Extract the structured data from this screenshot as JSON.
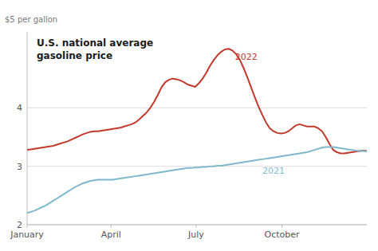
{
  "chart_data": {
    "type": "line",
    "title": "U.S. national average\ngasoline price",
    "y_label": "$5 per gallon",
    "x": [
      0,
      4,
      8,
      12,
      16,
      20,
      24,
      28,
      32,
      36,
      40,
      44,
      48,
      52,
      56,
      60,
      64,
      68,
      72,
      76,
      80,
      84,
      88,
      92,
      96,
      100,
      104,
      108,
      112,
      116,
      120,
      124,
      128,
      132,
      136,
      140,
      144,
      148,
      152,
      156,
      160,
      164,
      168,
      172,
      176,
      180,
      184,
      188,
      192,
      196,
      200,
      204,
      208,
      212,
      216,
      220,
      224,
      228,
      232,
      236,
      240,
      244,
      248,
      252,
      256,
      260,
      264,
      268,
      272,
      276,
      280,
      284,
      288,
      292,
      296,
      300,
      304,
      308,
      312,
      316,
      320,
      324,
      328,
      332,
      336,
      340,
      344,
      348,
      352,
      356,
      360,
      364
    ],
    "series": [
      {
        "name": "2022",
        "color": "#c0392b",
        "values": [
          3.28,
          3.29,
          3.3,
          3.31,
          3.32,
          3.33,
          3.34,
          3.35,
          3.37,
          3.39,
          3.41,
          3.43,
          3.46,
          3.49,
          3.52,
          3.55,
          3.57,
          3.59,
          3.6,
          3.6,
          3.61,
          3.62,
          3.63,
          3.64,
          3.65,
          3.66,
          3.68,
          3.7,
          3.72,
          3.75,
          3.8,
          3.86,
          3.92,
          4.0,
          4.1,
          4.22,
          4.35,
          4.44,
          4.48,
          4.5,
          4.49,
          4.47,
          4.44,
          4.4,
          4.38,
          4.36,
          4.42,
          4.5,
          4.6,
          4.72,
          4.82,
          4.9,
          4.96,
          5.0,
          5.01,
          4.98,
          4.92,
          4.82,
          4.68,
          4.52,
          4.35,
          4.18,
          4.02,
          3.88,
          3.75,
          3.65,
          3.6,
          3.57,
          3.56,
          3.57,
          3.6,
          3.65,
          3.7,
          3.72,
          3.7,
          3.68,
          3.68,
          3.68,
          3.65,
          3.6,
          3.5,
          3.38,
          3.28,
          3.24,
          3.22,
          3.22,
          3.23,
          3.24,
          3.25,
          3.26,
          3.27,
          3.26
        ]
      },
      {
        "name": "2021",
        "color": "#7eb8cc",
        "values": [
          2.2,
          2.22,
          2.24,
          2.27,
          2.3,
          2.33,
          2.37,
          2.41,
          2.45,
          2.49,
          2.53,
          2.57,
          2.61,
          2.65,
          2.68,
          2.71,
          2.73,
          2.75,
          2.76,
          2.77,
          2.77,
          2.77,
          2.77,
          2.77,
          2.78,
          2.79,
          2.8,
          2.81,
          2.82,
          2.83,
          2.84,
          2.85,
          2.86,
          2.87,
          2.88,
          2.89,
          2.9,
          2.91,
          2.92,
          2.93,
          2.94,
          2.95,
          2.96,
          2.97,
          2.97,
          2.98,
          2.98,
          2.99,
          2.99,
          3.0,
          3.0,
          3.01,
          3.01,
          3.02,
          3.03,
          3.04,
          3.05,
          3.06,
          3.07,
          3.08,
          3.09,
          3.1,
          3.11,
          3.12,
          3.13,
          3.14,
          3.15,
          3.16,
          3.17,
          3.18,
          3.19,
          3.2,
          3.21,
          3.22,
          3.23,
          3.24,
          3.26,
          3.28,
          3.3,
          3.32,
          3.33,
          3.33,
          3.33,
          3.32,
          3.31,
          3.3,
          3.29,
          3.28,
          3.27,
          3.26,
          3.26,
          3.25
        ]
      }
    ],
    "xlim": [
      0,
      364
    ],
    "xticks": [
      {
        "value": 0,
        "label": "January"
      },
      {
        "value": 90,
        "label": "April"
      },
      {
        "value": 181,
        "label": "July"
      },
      {
        "value": 273,
        "label": "October"
      }
    ],
    "ylim": [
      2.0,
      5.3
    ],
    "yticks": [
      2,
      3,
      4
    ],
    "grid": true
  }
}
